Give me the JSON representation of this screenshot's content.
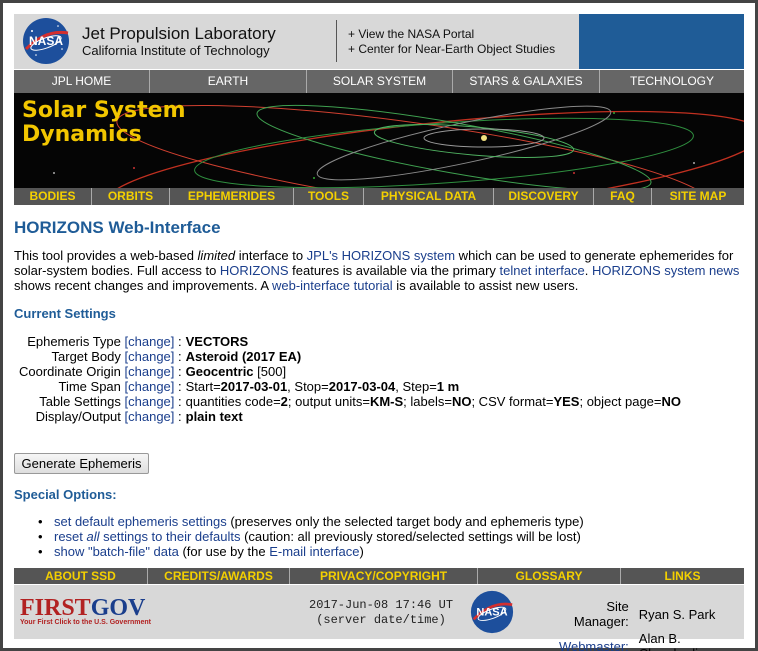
{
  "header": {
    "title": "Jet Propulsion Laboratory",
    "subtitle": "California Institute of Technology",
    "link1": "+ View the NASA Portal",
    "link2": "+ Center for Near-Earth Object Studies",
    "logo_text": "NASA"
  },
  "topnav": [
    "JPL HOME",
    "EARTH",
    "SOLAR SYSTEM",
    "STARS & GALAXIES",
    "TECHNOLOGY"
  ],
  "banner": {
    "line1": "Solar System",
    "line2": "Dynamics"
  },
  "secnav": [
    "BODIES",
    "ORBITS",
    "EPHEMERIDES",
    "TOOLS",
    "PHYSICAL DATA",
    "DISCOVERY",
    "FAQ",
    "SITE MAP"
  ],
  "page_title": "HORIZONS Web-Interface",
  "intro": {
    "t1": "This tool provides a web-based ",
    "t2": "limited",
    "t3": " interface to ",
    "l1": "JPL's HORIZONS system",
    "t4": " which can be used to generate ephemerides for solar-system bodies. Full access to ",
    "l2": "HORIZONS",
    "t5": " features is available via the primary ",
    "l3": "telnet interface",
    "t6": ". ",
    "l4": "HORIZONS system news",
    "t7": " shows recent changes and improvements. A ",
    "l5": "web-interface tutorial",
    "t8": " is available to assist new users."
  },
  "current_heading": "Current Settings",
  "change_label": "[change]",
  "settings": [
    {
      "label": "Ephemeris Type",
      "value": "VECTORS"
    },
    {
      "label": "Target Body",
      "value": "Asteroid (2017 EA)"
    },
    {
      "label": "Coordinate Origin",
      "value": "Geocentric",
      "extra": "[500]"
    },
    {
      "label": "Time Span",
      "p1": "Start=",
      "b1": "2017-03-01",
      "p2": ", Stop=",
      "b2": "2017-03-04",
      "p3": ", Step=",
      "b3": "1 m"
    },
    {
      "label": "Table Settings",
      "p1": "quantities code=",
      "b1": "2",
      "p2": "; output units=",
      "b2": "KM-S",
      "p3": "; labels=",
      "b3": "NO",
      "p4": "; CSV format=",
      "b4": "YES",
      "p5": "; object page=",
      "b5": "NO"
    },
    {
      "label": "Display/Output",
      "value": "plain text"
    }
  ],
  "generate_button": "Generate Ephemeris",
  "special_heading": "Special Options:",
  "special": [
    {
      "link": "set default ephemeris settings",
      "rest": " (preserves only the selected target body and ephemeris type)"
    },
    {
      "link_a": "reset ",
      "link_em": "all",
      "link_b": " settings to their defaults",
      "rest": " (caution: all previously stored/selected settings will be lost)"
    },
    {
      "link": "show \"batch-file\" data",
      "rest_a": " (for use by the ",
      "link2": "E-mail interface",
      "rest_b": ")"
    }
  ],
  "botnav": [
    "ABOUT SSD",
    "CREDITS/AWARDS",
    "PRIVACY/COPYRIGHT",
    "GLOSSARY",
    "LINKS"
  ],
  "footer": {
    "firstgov_first": "FIRST",
    "firstgov_gov": "GOV",
    "firstgov_tag": "Your First Click to the U.S. Government",
    "server_date": "2017-Jun-08 17:46 UT",
    "server_label": "(server date/time)",
    "manager_label": "Site Manager:",
    "manager_name": "Ryan S. Park",
    "webmaster_label": "Webmaster:",
    "webmaster_name": "Alan B. Chamberlin"
  },
  "colors": {
    "accent_blue": "#1f5c97",
    "nav_yellow": "#f4d000",
    "link": "#1a3e8c"
  }
}
